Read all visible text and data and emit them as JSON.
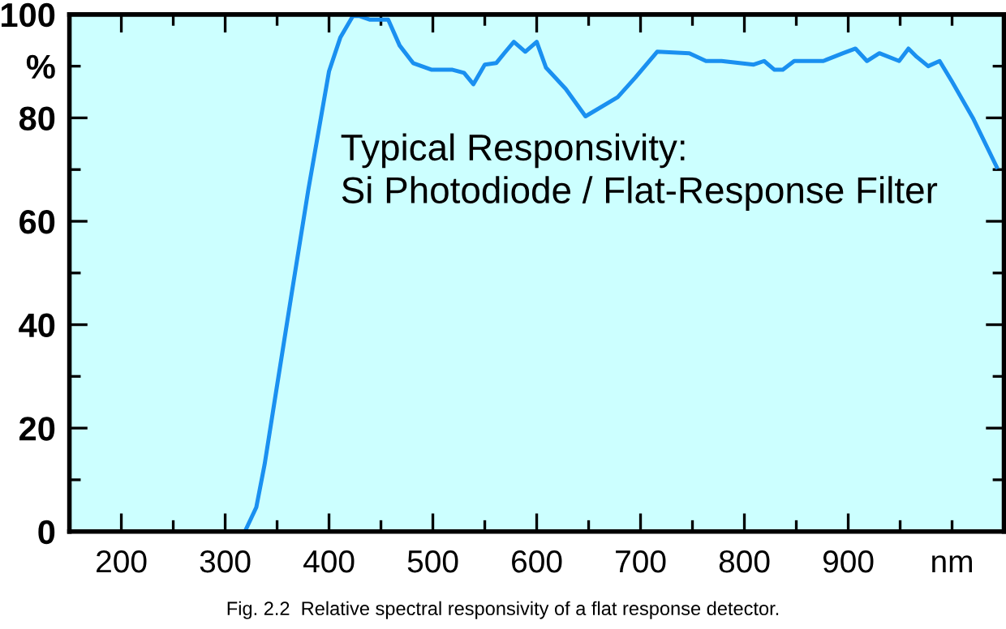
{
  "chart_data": {
    "type": "line",
    "annotations": [
      "Typical Responsivity:\nSi Photodiode / Flat-Response Filter",
      "Fig. 2.2  Relative spectral responsivity of a flat response detector."
    ],
    "series": [
      {
        "color": "#1a90f0",
        "x": [
          319,
          330,
          338,
          349,
          364,
          380,
          400,
          411,
          423,
          429,
          439,
          457,
          468,
          481,
          499,
          519,
          530,
          539,
          550,
          561,
          570,
          578,
          589,
          600,
          609,
          628,
          647,
          678,
          695,
          716,
          747,
          763,
          778,
          809,
          819,
          829,
          837,
          848,
          876,
          895,
          907,
          918,
          930,
          949,
          958,
          966,
          977,
          988,
          1000,
          1020,
          1043
        ],
        "values": [
          0,
          4.7,
          13,
          27,
          46,
          66,
          89,
          95.6,
          99.7,
          99.7,
          99,
          99,
          94,
          90.6,
          89.3,
          89.3,
          88.7,
          86.5,
          90.3,
          90.6,
          92.8,
          94.7,
          92.8,
          94.7,
          89.7,
          85.6,
          80.3,
          84,
          87.8,
          92.8,
          92.5,
          91,
          91,
          90.3,
          91,
          89.3,
          89.3,
          91,
          91,
          92.5,
          93.4,
          91,
          92.5,
          91,
          93.4,
          91.8,
          90,
          91,
          87,
          80,
          70.5
        ]
      }
    ],
    "xlim": [
      150,
      1050
    ],
    "ylim": [
      0,
      100
    ],
    "xticks": [
      200,
      300,
      400,
      500,
      600,
      700,
      800,
      900,
      {
        "value": 1000,
        "label": "nm"
      },
      {
        "value": 250,
        "label": null
      },
      {
        "value": 350,
        "label": null
      },
      {
        "value": 450,
        "label": null
      },
      {
        "value": 550,
        "label": null
      },
      {
        "value": 650,
        "label": null
      },
      {
        "value": 750,
        "label": null
      },
      {
        "value": 850,
        "label": null
      },
      {
        "value": 950,
        "label": null
      }
    ],
    "yticks": [
      0,
      20,
      40,
      60,
      80,
      100,
      {
        "value": 90,
        "label": "%"
      },
      {
        "value": 10,
        "label": null
      },
      {
        "value": 30,
        "label": null
      },
      {
        "value": 50,
        "label": null
      },
      {
        "value": 70,
        "label": null
      }
    ],
    "grid": false,
    "legend": false,
    "marker": "none",
    "line_style": "solid"
  }
}
